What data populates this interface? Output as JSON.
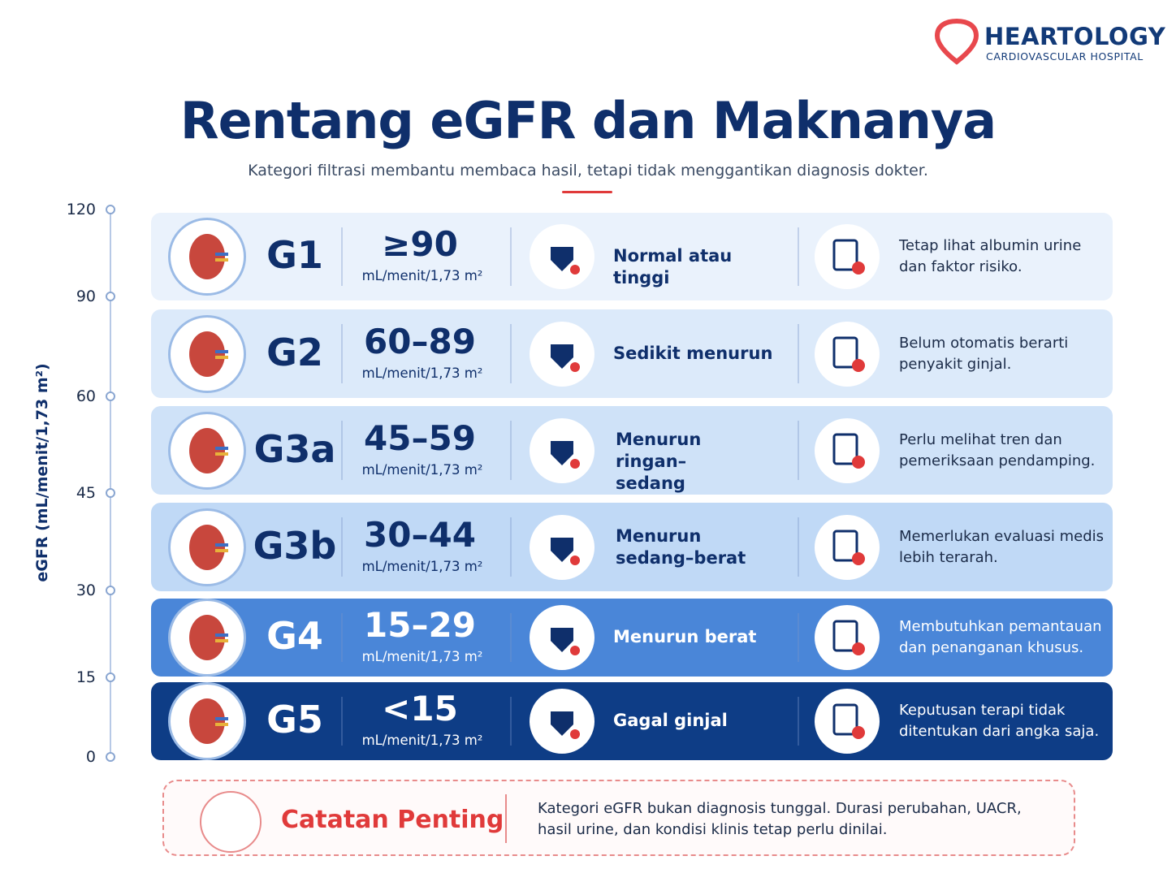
{
  "brand": {
    "name": "HEARTOLOGY",
    "tagline": "CARDIOVASCULAR HOSPITAL"
  },
  "header": {
    "title": "Rentang eGFR dan Maknanya",
    "subtitle": "Kategori filtrasi membantu membaca hasil, tetapi tidak menggantikan diagnosis dokter."
  },
  "axis": {
    "label": "eGFR (mL/menit/1,73 m²)",
    "ticks": [
      120,
      90,
      60,
      45,
      30,
      15,
      0
    ]
  },
  "rows": [
    {
      "stage": "G1",
      "range": "≥90",
      "unit": "mL/menit/1,73 m²",
      "meaning": "Normal atau tinggi",
      "note": "Tetap lihat albumin urine dan faktor risiko."
    },
    {
      "stage": "G2",
      "range": "60–89",
      "unit": "mL/menit/1,73 m²",
      "meaning": "Sedikit menurun",
      "note": "Belum otomatis berarti penyakit ginjal."
    },
    {
      "stage": "G3a",
      "range": "45–59",
      "unit": "mL/menit/1,73 m²",
      "meaning": "Menurun ringan–sedang",
      "note": "Perlu melihat tren dan pemeriksaan pendamping."
    },
    {
      "stage": "G3b",
      "range": "30–44",
      "unit": "mL/menit/1,73 m²",
      "meaning": "Menurun sedang–berat",
      "note": "Memerlukan evaluasi medis lebih terarah."
    },
    {
      "stage": "G4",
      "range": "15–29",
      "unit": "mL/menit/1,73 m²",
      "meaning": "Menurun berat",
      "note": "Membutuhkan pemantauan dan penanganan khusus."
    },
    {
      "stage": "G5",
      "range": "<15",
      "unit": "mL/menit/1,73 m²",
      "meaning": "Gagal ginjal",
      "note": "Keputusan terapi tidak ditentukan dari angka saja."
    }
  ],
  "callout": {
    "title": "Catatan Penting",
    "text": "Kategori eGFR bukan diagnosis tunggal. Durasi perubahan, UACR, hasil urine, dan kondisi klinis tetap perlu dinilai."
  }
}
